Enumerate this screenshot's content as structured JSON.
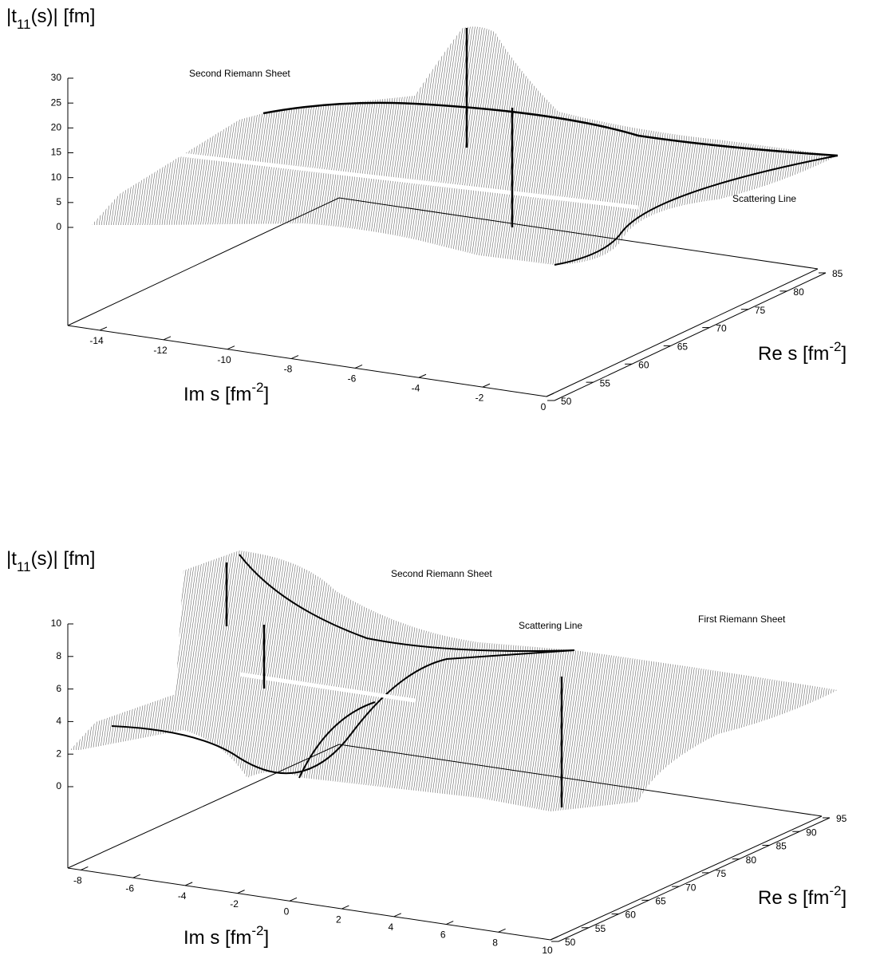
{
  "chart_data": [
    {
      "type": "surface3d",
      "zlabel": [
        "|t",
        "11",
        "(s)| [fm]"
      ],
      "xlabel": [
        "Im s [fm",
        "-2",
        "]"
      ],
      "ylabel": [
        "Re s [fm",
        "-2",
        "]"
      ],
      "annotations": [
        "Second Riemann Sheet",
        "Scattering Line"
      ],
      "zlim": [
        0,
        30
      ],
      "zticks": [
        0,
        5,
        10,
        15,
        20,
        25,
        30
      ],
      "xlim": [
        -15,
        0
      ],
      "xticks": [
        -14,
        -12,
        -10,
        -8,
        -6,
        -4,
        -2,
        0
      ],
      "ylim": [
        50,
        85
      ],
      "yticks": [
        50,
        55,
        60,
        65,
        70,
        75,
        80,
        85
      ]
    },
    {
      "type": "surface3d",
      "zlabel": [
        "|t",
        "11",
        "(s)| [fm]"
      ],
      "xlabel": [
        "Im s [fm",
        "-2",
        "]"
      ],
      "ylabel": [
        "Re s [fm",
        "-2",
        "]"
      ],
      "annotations": [
        "Second Riemann Sheet",
        "Scattering Line",
        "First Riemann Sheet"
      ],
      "zlim": [
        0,
        10
      ],
      "zticks": [
        0,
        2,
        4,
        6,
        8,
        10
      ],
      "xlim": [
        -8.5,
        10
      ],
      "xticks": [
        -8,
        -6,
        -4,
        -2,
        0,
        2,
        4,
        6,
        8,
        10
      ],
      "ylim": [
        50,
        95
      ],
      "yticks": [
        50,
        55,
        60,
        65,
        70,
        75,
        80,
        85,
        90,
        95
      ]
    }
  ]
}
